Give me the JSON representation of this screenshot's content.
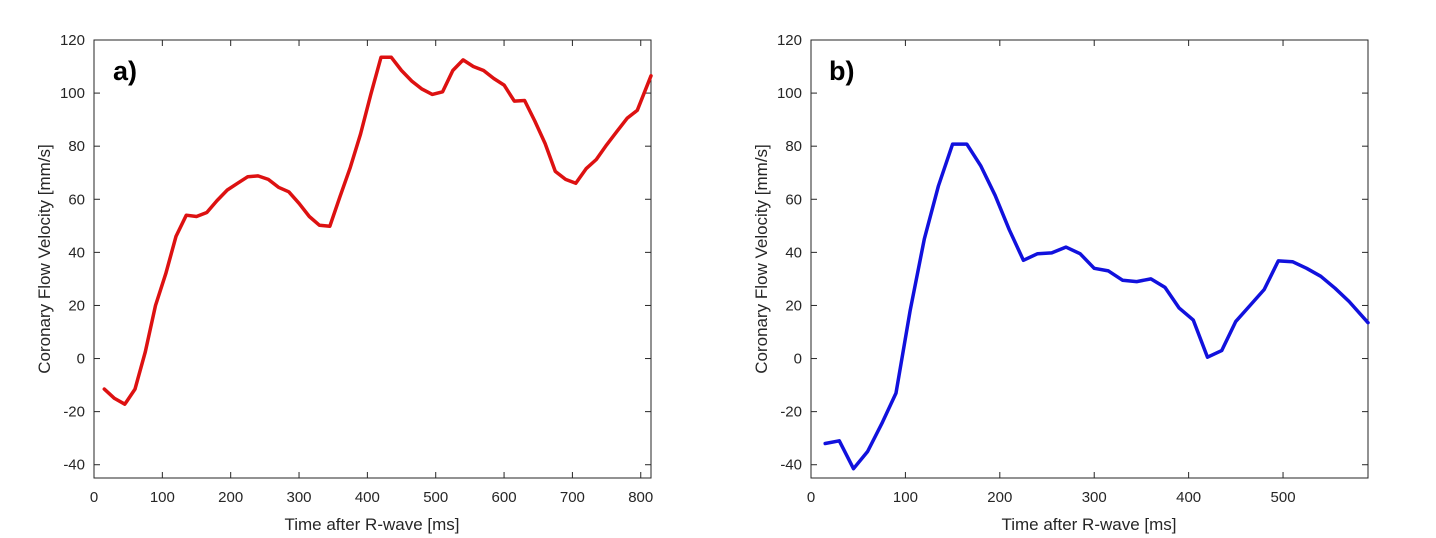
{
  "chart_data": [
    {
      "type": "line",
      "panel_label": "a)",
      "xlabel": "Time after R-wave [ms]",
      "ylabel": "Coronary Flow Velocity [mm/s]",
      "xlim": [
        0,
        815
      ],
      "ylim": [
        -45,
        120
      ],
      "xticks": [
        0,
        100,
        200,
        300,
        400,
        500,
        600,
        700,
        800
      ],
      "yticks": [
        -40,
        -20,
        0,
        20,
        40,
        60,
        80,
        100,
        120
      ],
      "grid": false,
      "series": [
        {
          "color": "#dd1111",
          "x": [
            15,
            30,
            45,
            60,
            75,
            90,
            105,
            120,
            135,
            150,
            165,
            180,
            195,
            210,
            225,
            240,
            255,
            270,
            285,
            300,
            315,
            330,
            345,
            360,
            375,
            390,
            405,
            420,
            435,
            450,
            465,
            480,
            495,
            510,
            525,
            540,
            555,
            570,
            585,
            600,
            615,
            630,
            645,
            660,
            675,
            690,
            705,
            720,
            735,
            750,
            765,
            780,
            795,
            815
          ],
          "y": [
            -11.5,
            -15,
            -17.2,
            -11.5,
            2.5,
            20,
            32,
            46,
            54,
            53.5,
            55,
            59.5,
            63.5,
            66,
            68.5,
            68.8,
            67.5,
            64.5,
            62.8,
            58.5,
            53.5,
            50.2,
            49.8,
            61,
            72,
            84.5,
            99.5,
            113.5,
            113.5,
            108.5,
            104.5,
            101.5,
            99.5,
            100.5,
            108.5,
            112.5,
            110,
            108.5,
            105.5,
            103,
            97,
            97.2,
            89.5,
            81,
            70.5,
            67.5,
            66,
            71.5,
            75,
            80.5,
            85.5,
            90.5,
            93.5,
            106.5
          ]
        }
      ]
    },
    {
      "type": "line",
      "panel_label": "b)",
      "xlabel": "Time after R-wave [ms]",
      "ylabel": "Coronary Flow Velocity [mm/s]",
      "xlim": [
        0,
        590
      ],
      "ylim": [
        -45,
        120
      ],
      "xticks": [
        0,
        100,
        200,
        300,
        400,
        500
      ],
      "yticks": [
        -40,
        -20,
        0,
        20,
        40,
        60,
        80,
        100,
        120
      ],
      "grid": false,
      "series": [
        {
          "color": "#1111dd",
          "x": [
            15,
            30,
            45,
            60,
            75,
            90,
            105,
            120,
            135,
            150,
            165,
            180,
            195,
            210,
            225,
            240,
            255,
            270,
            285,
            300,
            315,
            330,
            345,
            360,
            375,
            390,
            405,
            420,
            435,
            450,
            465,
            480,
            495,
            510,
            525,
            540,
            555,
            570,
            590
          ],
          "y": [
            -32,
            -31,
            -41.5,
            -35,
            -24.5,
            -13,
            18,
            45,
            65,
            80.8,
            80.8,
            72.5,
            61.5,
            48.5,
            37,
            39.5,
            39.8,
            42,
            39.5,
            34,
            33,
            29.5,
            29,
            30,
            26.8,
            19,
            14.5,
            0.5,
            3,
            14,
            20,
            26,
            36.8,
            36.5,
            34,
            31,
            26.5,
            21.5,
            13.5
          ]
        }
      ]
    }
  ]
}
